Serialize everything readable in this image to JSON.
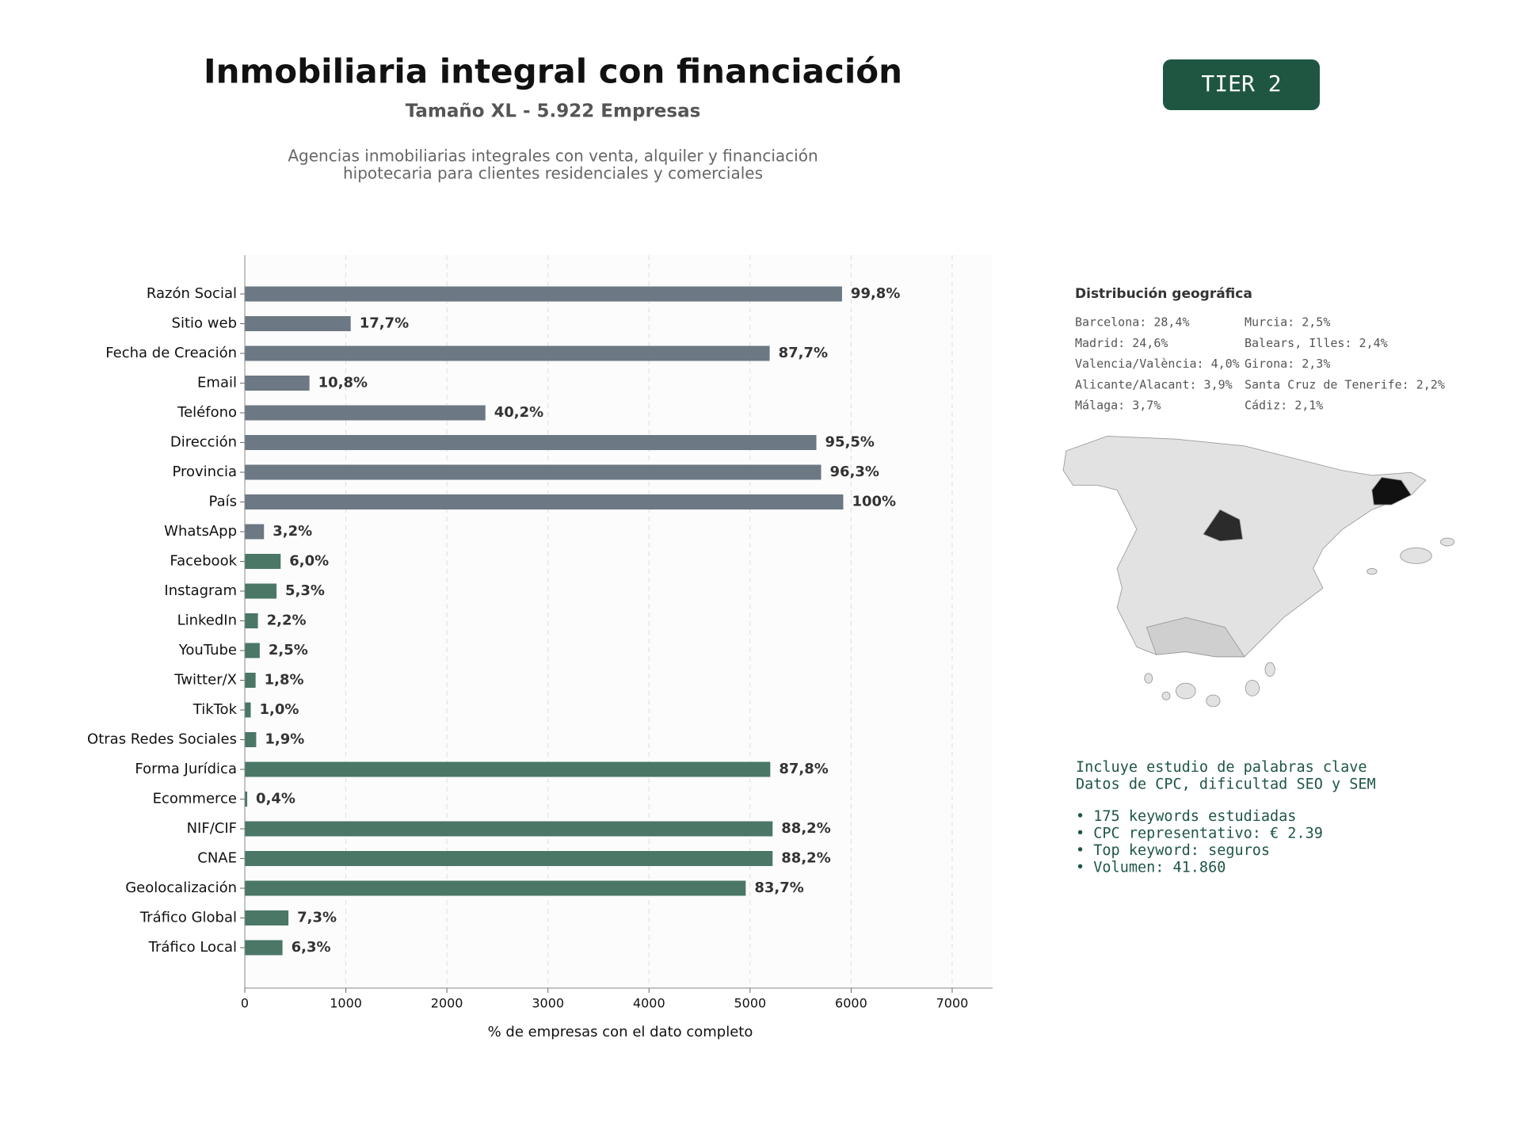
{
  "header": {
    "title": "Inmobiliaria integral con financiación",
    "subtitle": "Tamaño XL - 5.922 Empresas",
    "description": [
      "Agencias inmobiliarias integrales con venta, alquiler y financiación",
      "hipotecaria para clientes residenciales y comerciales"
    ]
  },
  "tier_badge": "TIER 2",
  "chart_data": {
    "type": "bar",
    "orientation": "horizontal",
    "categories": [
      "Razón Social",
      "Sitio web",
      "Fecha de Creación",
      "Email",
      "Teléfono",
      "Dirección",
      "Provincia",
      "País",
      "WhatsApp",
      "Facebook",
      "Instagram",
      "LinkedIn",
      "YouTube",
      "Twitter/X",
      "TikTok",
      "Otras Redes Sociales",
      "Forma Jurídica",
      "Ecommerce",
      "NIF/CIF",
      "CNAE",
      "Geolocalización",
      "Tráfico Global",
      "Tráfico Local"
    ],
    "values": [
      5910,
      1048,
      5194,
      640,
      2381,
      5656,
      5703,
      5922,
      190,
      355,
      314,
      130,
      148,
      107,
      59,
      113,
      5200,
      24,
      5223,
      5223,
      4957,
      432,
      373
    ],
    "value_labels": [
      "99,8%",
      "17,7%",
      "87,7%",
      "10,8%",
      "40,2%",
      "95,5%",
      "96,3%",
      "100%",
      "3,2%",
      "6,0%",
      "5,3%",
      "2,2%",
      "2,5%",
      "1,8%",
      "1,0%",
      "1,9%",
      "87,8%",
      "0,4%",
      "88,2%",
      "88,2%",
      "83,7%",
      "7,3%",
      "6,3%"
    ],
    "colors": [
      "#6c7883",
      "#6c7883",
      "#6c7883",
      "#6c7883",
      "#6c7883",
      "#6c7883",
      "#6c7883",
      "#6c7883",
      "#6c7883",
      "#4a7766",
      "#4a7766",
      "#4a7766",
      "#4a7766",
      "#4a7766",
      "#4a7766",
      "#4a7766",
      "#4a7766",
      "#4a7766",
      "#4a7766",
      "#4a7766",
      "#4a7766",
      "#4a7766",
      "#4a7766"
    ],
    "xlim": [
      0,
      7400
    ],
    "xticks": [
      0,
      1000,
      2000,
      3000,
      4000,
      5000,
      6000,
      7000
    ],
    "xlabel": "% de empresas con el dato completo",
    "grid": true
  },
  "geo": {
    "title": "Distribución geográfica",
    "items": [
      "Barcelona: 28,4%",
      "Madrid: 24,6%",
      "Valencia/València: 4,0%",
      "Alicante/Alacant: 3,9%",
      "Málaga: 3,7%",
      "Murcia: 2,5%",
      "Balears, Illes: 2,4%",
      "Girona: 2,3%",
      "Santa Cruz de Tenerife: 2,2%",
      "Cádiz: 2,1%"
    ]
  },
  "keywords": {
    "intro": [
      "Incluye estudio de palabras clave",
      "Datos de CPC, dificultad SEO y SEM"
    ],
    "bullets": [
      "• 175 keywords estudiadas",
      "• CPC representativo: € 2.39",
      "• Top keyword: seguros",
      "• Volumen: 41.860"
    ]
  }
}
